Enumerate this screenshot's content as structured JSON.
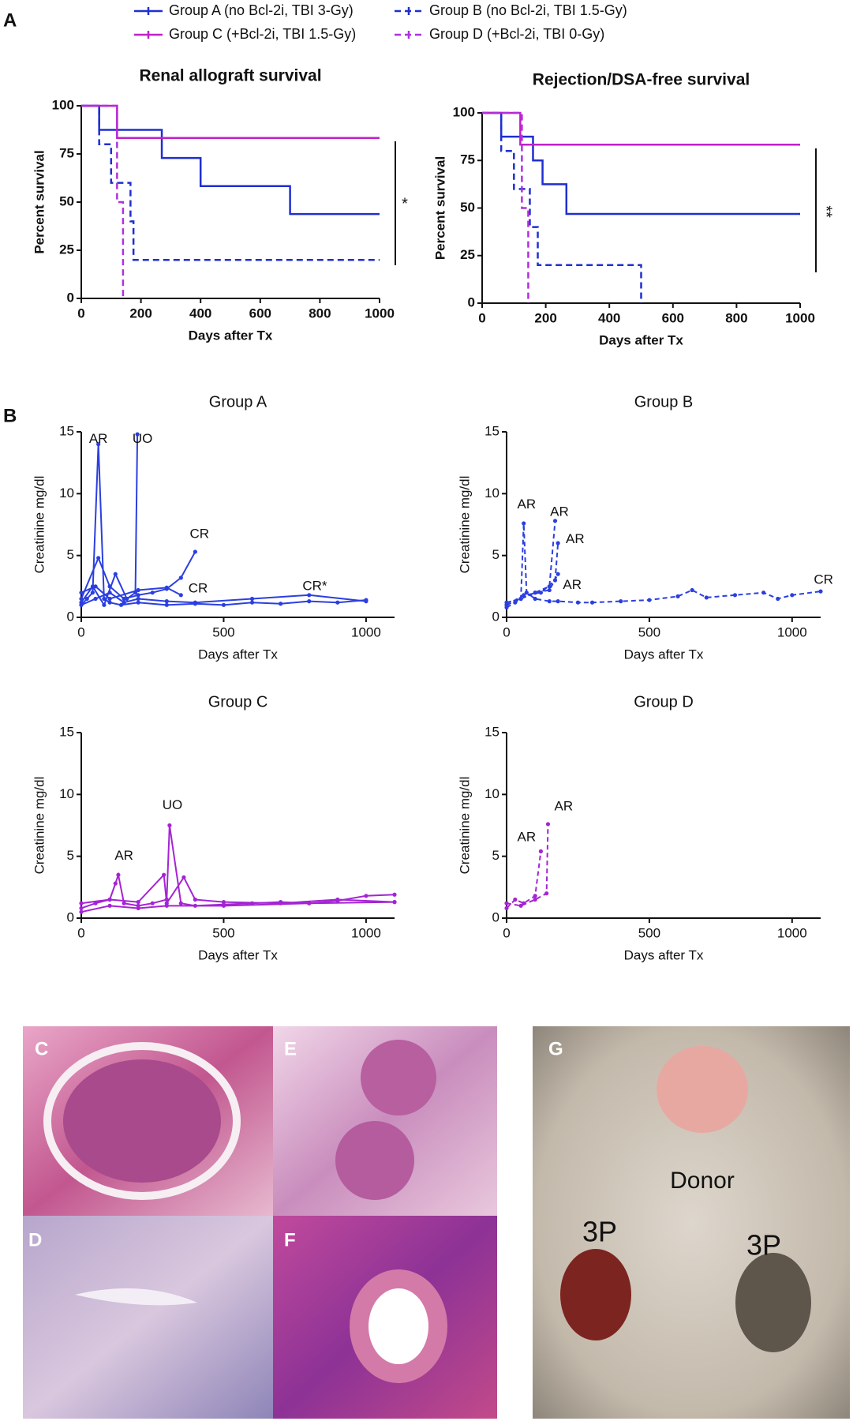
{
  "panel_labels": [
    "A",
    "B",
    "C",
    "D",
    "E",
    "F",
    "G"
  ],
  "photo_labels": [
    "Donor",
    "3P",
    "3P"
  ],
  "chart_data": [
    {
      "type": "step",
      "title": "Renal allograft survival",
      "x_label": "Days after Tx",
      "y_label": "Percent survival",
      "xlim": [
        0,
        1000
      ],
      "xticks": [
        0,
        200,
        400,
        600,
        800,
        1000
      ],
      "ylim": [
        0,
        100
      ],
      "yticks": [
        0,
        25,
        50,
        75,
        100
      ],
      "significance": "*",
      "legend": true,
      "series": [
        {
          "name": "Group A (no Bcl-2i, TBI 3-Gy)",
          "color": "#1f2fd0",
          "dash": false,
          "x": [
            0,
            60,
            270,
            400,
            700,
            1000
          ],
          "values": [
            100,
            87.5,
            72.9,
            58.3,
            43.8,
            43.8
          ]
        },
        {
          "name": "Group B (no Bcl-2i, TBI 1.5-Gy)",
          "color": "#1f2fd0",
          "dash": true,
          "x": [
            0,
            60,
            100,
            165,
            175,
            1000
          ],
          "values": [
            100,
            80,
            60,
            40,
            20,
            20
          ]
        },
        {
          "name": "Group C (+Bcl-2i, TBI 1.5-Gy)",
          "color": "#c020c8",
          "dash": false,
          "x": [
            0,
            120,
            1000
          ],
          "values": [
            100,
            83.3,
            83.3
          ]
        },
        {
          "name": "Group D (+Bcl-2i, TBI 0-Gy)",
          "color": "#b030e0",
          "dash": true,
          "x": [
            0,
            120,
            140
          ],
          "values": [
            100,
            50,
            0
          ]
        }
      ]
    },
    {
      "type": "step",
      "title": "Rejection/DSA-free survival",
      "x_label": "Days after Tx",
      "y_label": "Percent survival",
      "xlim": [
        0,
        1000
      ],
      "xticks": [
        0,
        200,
        400,
        600,
        800,
        1000
      ],
      "ylim": [
        0,
        100
      ],
      "yticks": [
        0,
        25,
        50,
        75,
        100
      ],
      "significance": "**",
      "legend": false,
      "series": [
        {
          "color": "#1f2fd0",
          "dash": false,
          "x": [
            0,
            60,
            160,
            190,
            265,
            1000
          ],
          "values": [
            100,
            87.5,
            75,
            62.5,
            46.9,
            46.9
          ]
        },
        {
          "color": "#1f2fd0",
          "dash": true,
          "x": [
            0,
            60,
            100,
            150,
            175,
            500
          ],
          "values": [
            100,
            80,
            60,
            40,
            20,
            0
          ]
        },
        {
          "color": "#c020c8",
          "dash": false,
          "x": [
            0,
            120,
            1000
          ],
          "values": [
            100,
            83.3,
            83.3
          ]
        },
        {
          "color": "#b030e0",
          "dash": true,
          "x": [
            0,
            125,
            145
          ],
          "values": [
            100,
            50,
            0
          ]
        }
      ]
    },
    {
      "type": "line",
      "title": "Group A",
      "x_label": "Days after Tx",
      "y_label": "Creatinine mg/dl",
      "xlim": [
        0,
        1100
      ],
      "xticks": [
        0,
        500,
        1000
      ],
      "ylim": [
        0,
        15
      ],
      "yticks": [
        0,
        5,
        10,
        15
      ],
      "series": [
        {
          "color": "#2b3fe0",
          "dash": false,
          "x": [
            0,
            20,
            40,
            60,
            80,
            100,
            140,
            200,
            300,
            400,
            500,
            600,
            700,
            800,
            900,
            1000
          ],
          "values": [
            1.0,
            1.5,
            2.0,
            14,
            1.5,
            1.2,
            1.0,
            1.2,
            1.0,
            1.1,
            1.0,
            1.2,
            1.1,
            1.3,
            1.2,
            1.4
          ]
        },
        {
          "color": "#2b3fe0",
          "dash": false,
          "x": [
            0,
            40,
            80,
            120,
            160,
            190,
            197
          ],
          "values": [
            1.2,
            2.5,
            1.0,
            3.5,
            1.5,
            2.0,
            14.8
          ]
        },
        {
          "color": "#2b3fe0",
          "dash": false,
          "x": [
            0,
            60,
            100,
            150,
            200,
            250,
            300,
            350,
            400
          ],
          "values": [
            1.5,
            4.8,
            2.5,
            1.5,
            1.8,
            2.0,
            2.3,
            3.2,
            5.3
          ]
        },
        {
          "color": "#2b3fe0",
          "dash": false,
          "x": [
            0,
            50,
            100,
            150,
            200,
            300,
            400,
            600,
            800,
            1000
          ],
          "values": [
            1.0,
            1.5,
            2.0,
            1.2,
            1.5,
            1.3,
            1.2,
            1.5,
            1.8,
            1.3
          ]
        },
        {
          "color": "#2b3fe0",
          "dash": false,
          "x": [
            0,
            50,
            100,
            200,
            300,
            350
          ],
          "values": [
            2.0,
            2.5,
            1.5,
            2.2,
            2.4,
            1.8
          ]
        }
      ],
      "annotations": [
        {
          "text": "AR",
          "x": 60,
          "y": 14.4
        },
        {
          "text": "UO",
          "x": 215,
          "y": 14.4
        },
        {
          "text": "CR",
          "x": 415,
          "y": 6.7
        },
        {
          "text": "CR",
          "x": 410,
          "y": 2.3
        },
        {
          "text": "CR*",
          "x": 820,
          "y": 2.5
        }
      ]
    },
    {
      "type": "line",
      "title": "Group B",
      "x_label": "Days after Tx",
      "y_label": "Creatinine mg/dl",
      "xlim": [
        0,
        1100
      ],
      "xticks": [
        0,
        500,
        1000
      ],
      "ylim": [
        0,
        15
      ],
      "yticks": [
        0,
        5,
        10,
        15
      ],
      "series": [
        {
          "color": "#2b3fe0",
          "dash": true,
          "x": [
            0,
            30,
            50,
            60,
            70,
            100,
            150,
            180,
            250,
            300,
            400,
            500,
            600,
            650,
            700,
            800,
            900,
            950,
            1000,
            1100
          ],
          "values": [
            0.8,
            1.2,
            1.5,
            7.6,
            2,
            1.5,
            1.3,
            1.3,
            1.2,
            1.2,
            1.3,
            1.4,
            1.7,
            2.2,
            1.6,
            1.8,
            2.0,
            1.5,
            1.8,
            2.1
          ]
        },
        {
          "color": "#2b3fe0",
          "dash": true,
          "x": [
            0,
            50,
            100,
            150,
            170
          ],
          "values": [
            1,
            1.5,
            2,
            2.5,
            7.8
          ]
        },
        {
          "color": "#2b3fe0",
          "dash": true,
          "x": [
            0,
            60,
            120,
            170,
            180
          ],
          "values": [
            1,
            1.8,
            2,
            3,
            6
          ]
        },
        {
          "color": "#2b3fe0",
          "dash": true,
          "x": [
            0,
            50,
            100,
            150,
            180
          ],
          "values": [
            1.2,
            1.5,
            2,
            2.2,
            3.5
          ]
        }
      ],
      "annotations": [
        {
          "text": "AR",
          "x": 70,
          "y": 9.1
        },
        {
          "text": "AR",
          "x": 185,
          "y": 8.5
        },
        {
          "text": "AR",
          "x": 240,
          "y": 6.3
        },
        {
          "text": "AR",
          "x": 230,
          "y": 2.6
        },
        {
          "text": "CR",
          "x": 1110,
          "y": 3.0
        }
      ]
    },
    {
      "type": "line",
      "title": "Group C",
      "x_label": "Days after Tx",
      "y_label": "Creatinine mg/dl",
      "xlim": [
        0,
        1100
      ],
      "xticks": [
        0,
        500,
        1000
      ],
      "ylim": [
        0,
        15
      ],
      "yticks": [
        0,
        5,
        10,
        15
      ],
      "series": [
        {
          "color": "#a424d4",
          "dash": false,
          "x": [
            0,
            50,
            100,
            120,
            130,
            150,
            200,
            250,
            300,
            310,
            350,
            400,
            500,
            600,
            700,
            800,
            900,
            1000,
            1100
          ],
          "values": [
            0.8,
            1.2,
            1.5,
            2.8,
            3.5,
            1.2,
            1.0,
            1.2,
            1.5,
            7.5,
            1.2,
            1.0,
            1.1,
            1.2,
            1.3,
            1.2,
            1.4,
            1.8,
            1.9
          ]
        },
        {
          "color": "#a424d4",
          "dash": false,
          "x": [
            0,
            100,
            200,
            290,
            300,
            360,
            400,
            500,
            700,
            900,
            1100
          ],
          "values": [
            1.2,
            1.5,
            1.3,
            3.5,
            1.2,
            3.3,
            1.5,
            1.3,
            1.2,
            1.5,
            1.3
          ]
        },
        {
          "color": "#a424d4",
          "dash": false,
          "x": [
            0,
            100,
            200,
            300,
            500,
            800,
            1100
          ],
          "values": [
            0.5,
            1.0,
            0.8,
            1.0,
            1.0,
            1.2,
            1.3
          ]
        }
      ],
      "annotations": [
        {
          "text": "AR",
          "x": 150,
          "y": 5.0
        },
        {
          "text": "UO",
          "x": 320,
          "y": 9.1
        }
      ]
    },
    {
      "type": "line",
      "title": "Group D",
      "x_label": "Days after Tx",
      "y_label": "Creatinine mg/dl",
      "xlim": [
        0,
        1100
      ],
      "xticks": [
        0,
        500,
        1000
      ],
      "ylim": [
        0,
        15
      ],
      "yticks": [
        0,
        5,
        10,
        15
      ],
      "series": [
        {
          "color": "#a424d4",
          "dash": true,
          "x": [
            0,
            30,
            60,
            100,
            120
          ],
          "values": [
            0.8,
            1.5,
            1.2,
            1.8,
            5.4
          ]
        },
        {
          "color": "#a424d4",
          "dash": true,
          "x": [
            0,
            50,
            100,
            140,
            145
          ],
          "values": [
            1.2,
            1.0,
            1.5,
            2,
            7.6
          ]
        }
      ],
      "annotations": [
        {
          "text": "AR",
          "x": 70,
          "y": 6.5
        },
        {
          "text": "AR",
          "x": 200,
          "y": 9.0
        }
      ]
    }
  ]
}
